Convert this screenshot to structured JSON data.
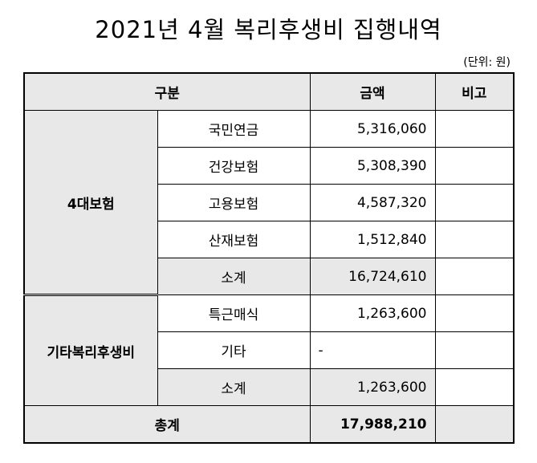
{
  "title": "2021년 4월 복리후생비 집행내역",
  "unit_note": "(단위: 원)",
  "headers": {
    "category": "구분",
    "amount": "금액",
    "remarks": "비고"
  },
  "groups": [
    {
      "name": "4대보험",
      "items": [
        {
          "label": "국민연금",
          "amount": "5,316,060",
          "remark": ""
        },
        {
          "label": "건강보험",
          "amount": "5,308,390",
          "remark": ""
        },
        {
          "label": "고용보험",
          "amount": "4,587,320",
          "remark": ""
        },
        {
          "label": "산재보험",
          "amount": "1,512,840",
          "remark": ""
        }
      ],
      "subtotal": {
        "label": "소계",
        "amount": "16,724,610",
        "remark": ""
      }
    },
    {
      "name": "기타복리후생비",
      "items": [
        {
          "label": "특근매식",
          "amount": "1,263,600",
          "remark": ""
        },
        {
          "label": "기타",
          "amount": "-",
          "remark": ""
        }
      ],
      "subtotal": {
        "label": "소계",
        "amount": "1,263,600",
        "remark": ""
      }
    }
  ],
  "total": {
    "label": "총계",
    "amount": "17,988,210",
    "remark": ""
  }
}
